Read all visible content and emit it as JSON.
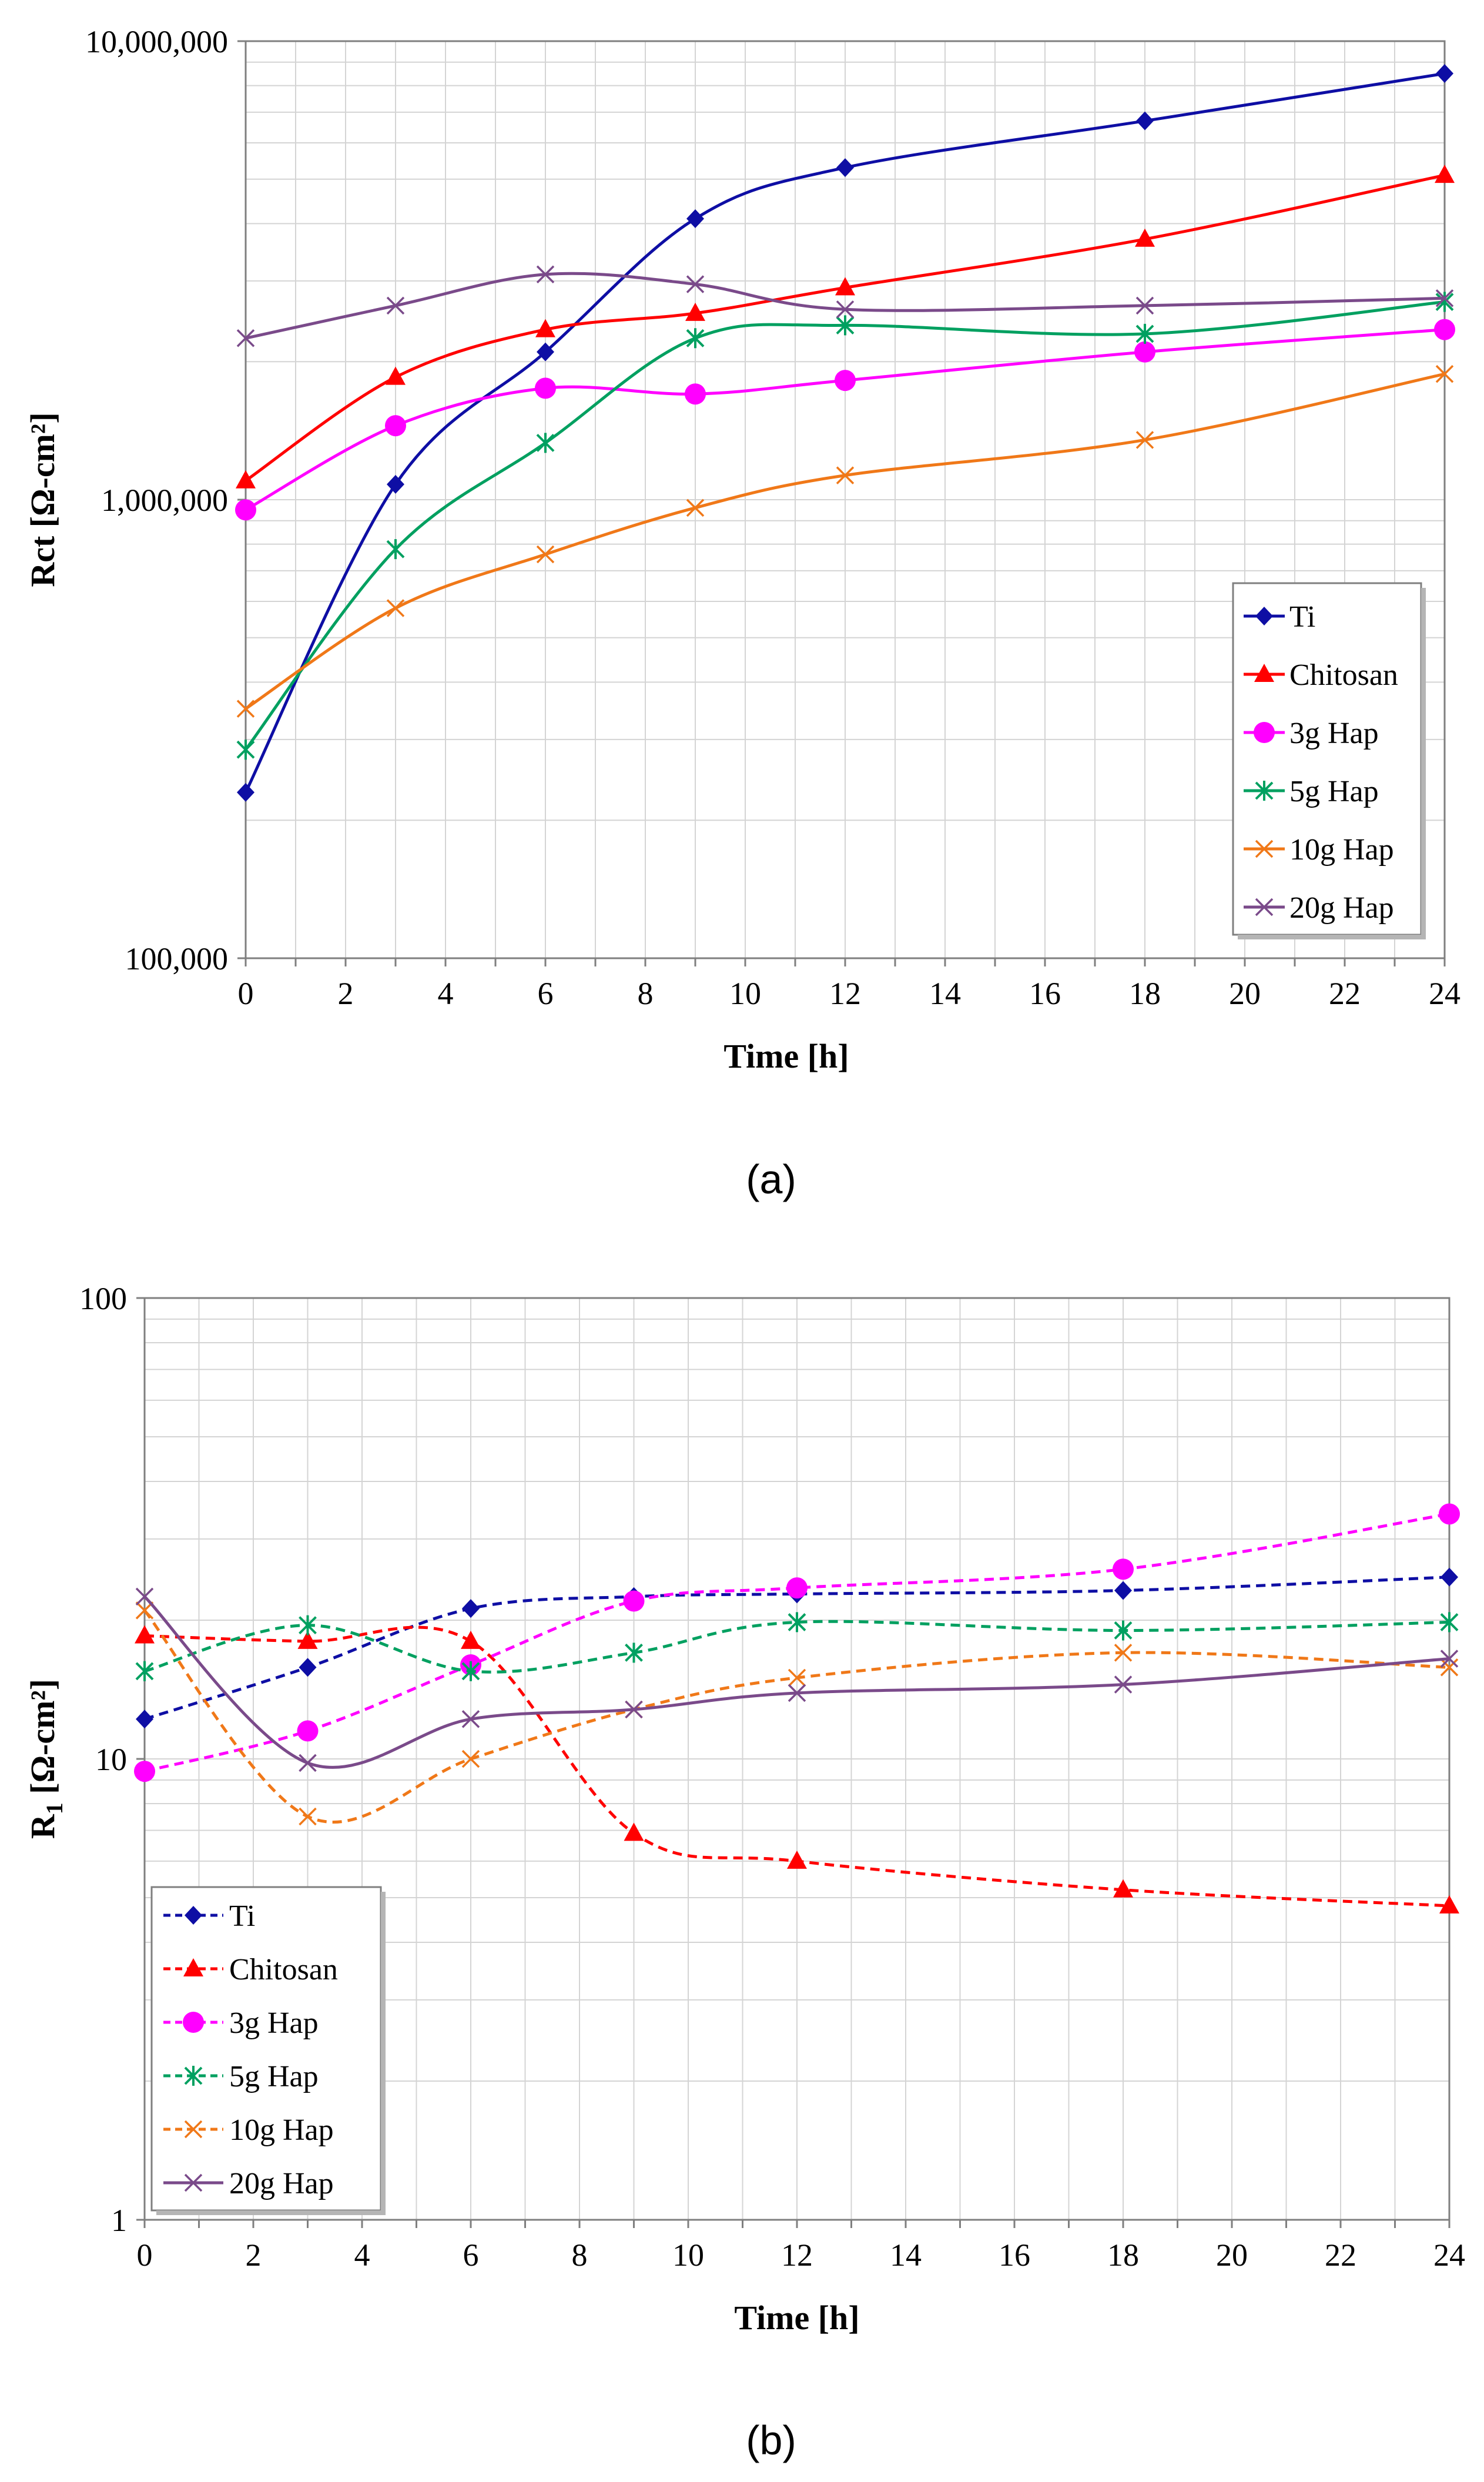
{
  "colors": {
    "Ti": "#0e0ea4",
    "Chitosan": "#ff0000",
    "3g Hap": "#ff00ff",
    "5g Hap": "#00a060",
    "10g Hap": "#f07818",
    "20g Hap": "#7a4a8a",
    "grid": "#d4d4d4",
    "axis": "#7f7f7f"
  },
  "chart_data": [
    {
      "id": "a",
      "type": "line",
      "caption": "(a)",
      "xlabel": "Time [h]",
      "ylabel": "Rct [Ω-cm²]",
      "yscale": "log",
      "xlim": [
        0,
        24
      ],
      "ylim": [
        100000,
        10000000
      ],
      "xticks": [
        "0",
        "2",
        "4",
        "6",
        "8",
        "10",
        "12",
        "14",
        "16",
        "18",
        "20",
        "22",
        "24"
      ],
      "yticks": [
        {
          "value": 100000,
          "label": "100,000"
        },
        {
          "value": 1000000,
          "label": "1,000,000"
        },
        {
          "value": 10000000,
          "label": "10,000,000"
        }
      ],
      "legend_position": "bottom-right",
      "line_style": "solid",
      "x": [
        0,
        3,
        6,
        9,
        12,
        18,
        24
      ],
      "series": [
        {
          "name": "Ti",
          "marker": "diamond",
          "values": [
            230000,
            1080000,
            2100000,
            4100000,
            5300000,
            6700000,
            8500000
          ]
        },
        {
          "name": "Chitosan",
          "marker": "triangle",
          "values": [
            1100000,
            1850000,
            2350000,
            2550000,
            2900000,
            3700000,
            5100000
          ]
        },
        {
          "name": "3g Hap",
          "marker": "circle",
          "values": [
            950000,
            1450000,
            1750000,
            1700000,
            1820000,
            2100000,
            2350000
          ]
        },
        {
          "name": "5g Hap",
          "marker": "asterisk",
          "values": [
            285000,
            780000,
            1330000,
            2250000,
            2400000,
            2300000,
            2700000
          ]
        },
        {
          "name": "10g Hap",
          "marker": "x",
          "values": [
            350000,
            580000,
            760000,
            960000,
            1130000,
            1350000,
            1880000
          ]
        },
        {
          "name": "20g Hap",
          "marker": "x",
          "values": [
            2250000,
            2650000,
            3100000,
            2950000,
            2600000,
            2650000,
            2750000
          ]
        }
      ]
    },
    {
      "id": "b",
      "type": "line",
      "caption": "(b)",
      "xlabel": "Time [h]",
      "ylabel": "R1 [Ω-cm²]",
      "ylabel_main": "R",
      "ylabel_sub": "1",
      "ylabel_rest": " [Ω-cm²]",
      "yscale": "log",
      "xlim": [
        0,
        24
      ],
      "ylim": [
        1,
        100
      ],
      "xticks": [
        "0",
        "2",
        "4",
        "6",
        "8",
        "10",
        "12",
        "14",
        "16",
        "18",
        "20",
        "22",
        "24"
      ],
      "yticks": [
        {
          "value": 1,
          "label": "1"
        },
        {
          "value": 10,
          "label": "10"
        },
        {
          "value": 100,
          "label": "100"
        }
      ],
      "legend_position": "bottom-left",
      "x": [
        0,
        3,
        6,
        9,
        12,
        18,
        24
      ],
      "series": [
        {
          "name": "Ti",
          "marker": "diamond",
          "line_style": "dashed",
          "values": [
            12.2,
            15.8,
            21.2,
            22.5,
            22.8,
            23.2,
            24.8
          ]
        },
        {
          "name": "Chitosan",
          "marker": "triangle",
          "line_style": "dashed",
          "values": [
            18.5,
            18.0,
            18.0,
            6.9,
            6.0,
            5.2,
            4.8
          ]
        },
        {
          "name": "3g Hap",
          "marker": "circle",
          "line_style": "dashed",
          "values": [
            9.4,
            11.5,
            16.0,
            22.0,
            23.5,
            25.8,
            34.0
          ]
        },
        {
          "name": "5g Hap",
          "marker": "asterisk",
          "line_style": "dashed",
          "values": [
            15.5,
            19.5,
            15.5,
            17.0,
            19.8,
            19.0,
            19.8
          ]
        },
        {
          "name": "10g Hap",
          "marker": "x",
          "line_style": "dashed",
          "values": [
            21.0,
            7.5,
            10.0,
            12.8,
            15.0,
            17.0,
            15.8
          ]
        },
        {
          "name": "20g Hap",
          "marker": "x",
          "line_style": "solid",
          "values": [
            22.5,
            9.8,
            12.2,
            12.8,
            13.9,
            14.5,
            16.5
          ]
        }
      ]
    }
  ]
}
